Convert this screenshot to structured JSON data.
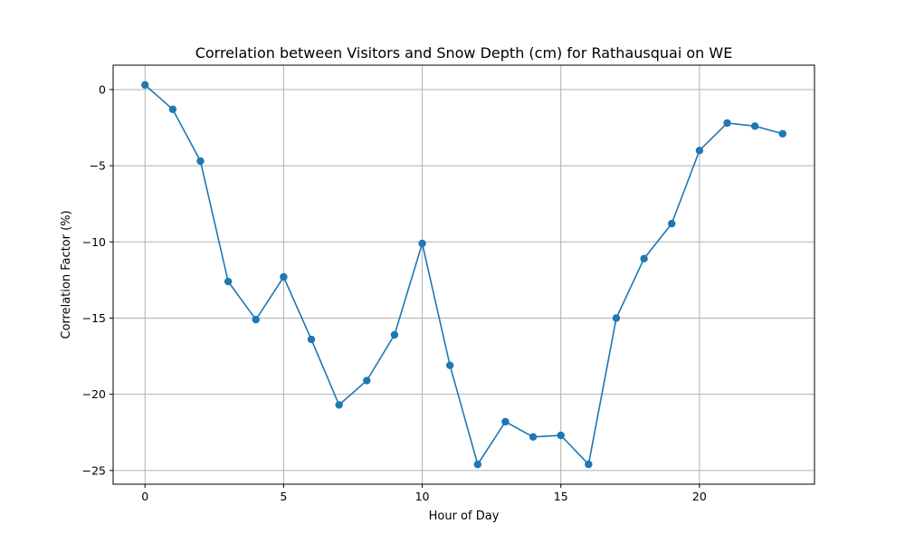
{
  "chart_data": {
    "type": "line",
    "title": "Correlation between Visitors and Snow Depth (cm) for Rathausquai on WE",
    "xlabel": "Hour of Day",
    "ylabel": "Correlation Factor (%)",
    "xlim": [
      -1.15,
      24.15
    ],
    "ylim": [
      -25.9,
      1.6
    ],
    "xticks": [
      0,
      5,
      10,
      15,
      20
    ],
    "yticks": [
      0,
      -5,
      -10,
      -15,
      -20,
      -25
    ],
    "xtick_labels": [
      "0",
      "5",
      "10",
      "15",
      "20"
    ],
    "ytick_labels": [
      "0",
      "−5",
      "−10",
      "−15",
      "−20",
      "−25"
    ],
    "grid": true,
    "color": "#1f77b4",
    "x": [
      0,
      1,
      2,
      3,
      4,
      5,
      6,
      7,
      8,
      9,
      10,
      11,
      12,
      13,
      14,
      15,
      16,
      17,
      18,
      19,
      20,
      21,
      22,
      23
    ],
    "series": [
      {
        "values": [
          0.3,
          -1.3,
          -4.7,
          -12.6,
          -15.1,
          -12.3,
          -16.4,
          -20.7,
          -19.1,
          -16.1,
          -10.1,
          -18.1,
          -24.6,
          -21.8,
          -22.8,
          -22.7,
          -24.6,
          -15.0,
          -11.1,
          -8.8,
          -4.0,
          -2.2,
          -2.4,
          -2.9
        ]
      }
    ]
  }
}
